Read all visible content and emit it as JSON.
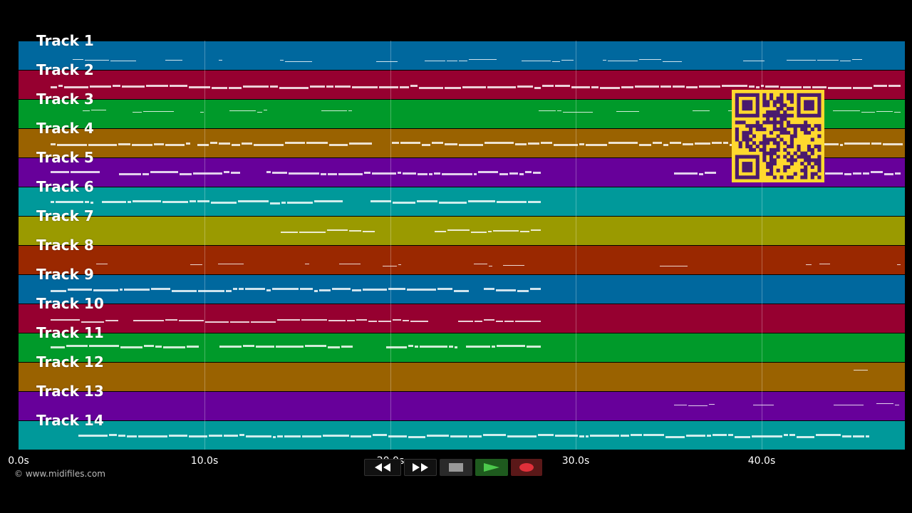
{
  "tracks": [
    {
      "label": "Track 1",
      "color": "#00689e"
    },
    {
      "label": "Track 2",
      "color": "#960030"
    },
    {
      "label": "Track 3",
      "color": "#009a2a"
    },
    {
      "label": "Track 4",
      "color": "#9a6200"
    },
    {
      "label": "Track 5",
      "color": "#67009a"
    },
    {
      "label": "Track 6",
      "color": "#00999a"
    },
    {
      "label": "Track 7",
      "color": "#9a9a00"
    },
    {
      "label": "Track 8",
      "color": "#9a2800"
    },
    {
      "label": "Track 9",
      "color": "#00689e"
    },
    {
      "label": "Track 10",
      "color": "#960030"
    },
    {
      "label": "Track 11",
      "color": "#009a2a"
    },
    {
      "label": "Track 12",
      "color": "#9a6200"
    },
    {
      "label": "Track 13",
      "color": "#67009a"
    },
    {
      "label": "Track 14",
      "color": "#00999a"
    }
  ],
  "timeline": {
    "ticks": [
      "0.0s",
      "10.0s",
      "20.0s",
      "30.0s",
      "40.0s"
    ]
  },
  "footer": {
    "copyright": "© www.midifiles.com"
  },
  "controls": [
    {
      "name": "rewind-button",
      "icon": "rewind-icon"
    },
    {
      "name": "fast-forward-button",
      "icon": "fast-forward-icon"
    },
    {
      "name": "stop-button",
      "icon": "stop-icon"
    },
    {
      "name": "play-button",
      "icon": "play-icon"
    },
    {
      "name": "record-button",
      "icon": "record-icon"
    }
  ],
  "qr_code": {
    "icon": "qr-code-icon",
    "color": "#ffd92e"
  }
}
